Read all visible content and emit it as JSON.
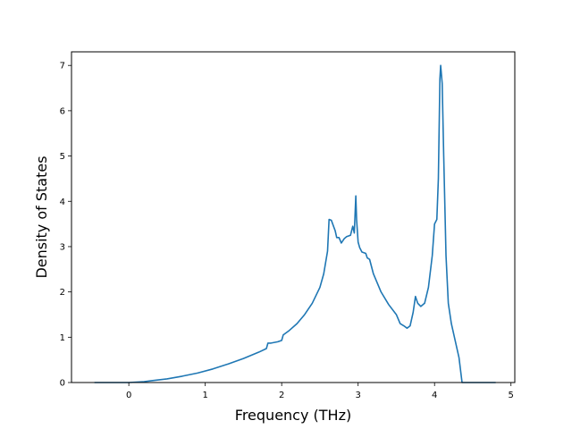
{
  "chart_data": {
    "type": "line",
    "xlabel": "Frequency (THz)",
    "ylabel": "Density of States",
    "xlim": [
      -0.75,
      5.05
    ],
    "ylim": [
      0,
      7.3
    ],
    "xticks": [
      0,
      1,
      2,
      3,
      4,
      5
    ],
    "yticks": [
      0,
      1,
      2,
      3,
      4,
      5,
      6,
      7
    ],
    "grid": false,
    "line_color": "#1f77b4",
    "series": [
      {
        "x": [
          -0.45,
          -0.2,
          0.0,
          0.1,
          0.2,
          0.3,
          0.5,
          0.7,
          0.9,
          1.1,
          1.3,
          1.5,
          1.7,
          1.8,
          1.82,
          1.86,
          1.95,
          2.0,
          2.02,
          2.1,
          2.2,
          2.3,
          2.4,
          2.5,
          2.55,
          2.6,
          2.62,
          2.65,
          2.7,
          2.72,
          2.75,
          2.78,
          2.82,
          2.85,
          2.9,
          2.93,
          2.95,
          2.97,
          2.98,
          3.0,
          3.02,
          3.05,
          3.1,
          3.12,
          3.15,
          3.2,
          3.3,
          3.4,
          3.5,
          3.55,
          3.6,
          3.64,
          3.68,
          3.72,
          3.75,
          3.78,
          3.82,
          3.87,
          3.92,
          3.97,
          4.0,
          4.03,
          4.05,
          4.07,
          4.08,
          4.1,
          4.12,
          4.15,
          4.18,
          4.22,
          4.28,
          4.32,
          4.36,
          4.5,
          4.8
        ],
        "y": [
          0.0,
          0.0,
          0.0,
          0.01,
          0.02,
          0.04,
          0.08,
          0.14,
          0.21,
          0.3,
          0.41,
          0.53,
          0.67,
          0.75,
          0.87,
          0.87,
          0.9,
          0.93,
          1.05,
          1.15,
          1.3,
          1.5,
          1.75,
          2.1,
          2.4,
          2.9,
          3.6,
          3.58,
          3.35,
          3.2,
          3.2,
          3.08,
          3.18,
          3.22,
          3.25,
          3.45,
          3.3,
          4.12,
          3.6,
          3.1,
          2.98,
          2.88,
          2.85,
          2.75,
          2.72,
          2.4,
          2.0,
          1.72,
          1.5,
          1.3,
          1.25,
          1.2,
          1.25,
          1.55,
          1.9,
          1.75,
          1.68,
          1.75,
          2.1,
          2.8,
          3.5,
          3.6,
          4.5,
          6.7,
          7.0,
          6.6,
          5.0,
          2.8,
          1.75,
          1.3,
          0.85,
          0.55,
          0.0,
          0.0,
          0.0
        ]
      }
    ]
  }
}
